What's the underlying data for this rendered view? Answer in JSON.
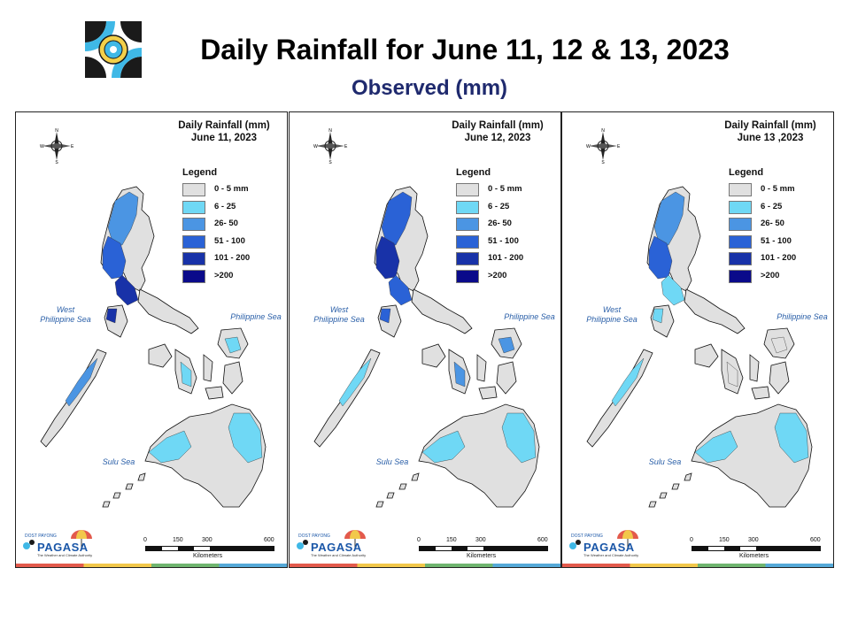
{
  "header": {
    "title": "Daily Rainfall for June 11, 12 & 13, 2023",
    "subtitle": "Observed (mm)"
  },
  "legend": {
    "heading": "Legend",
    "classes": [
      {
        "label": "0 - 5 mm",
        "color": "#e0e0e0"
      },
      {
        "label": "6 - 25",
        "color": "#6fd8f5"
      },
      {
        "label": "26- 50",
        "color": "#4b95e3"
      },
      {
        "label": "51 - 100",
        "color": "#2a62d6"
      },
      {
        "label": "101 - 200",
        "color": "#1832a8"
      },
      {
        "label": ">200",
        "color": "#0a0a8a"
      }
    ]
  },
  "panels": [
    {
      "title_line1": "Daily Rainfall (mm)",
      "title_line2": "June 11, 2023",
      "rain_colors": {
        "north": "#4b95e3",
        "northwest": "#2a62d6",
        "manila": "#1832a8",
        "visayas": "#6fd8f5",
        "mindanao": "#6fd8f5",
        "palawan": "#4b95e3"
      }
    },
    {
      "title_line1": "Daily Rainfall (mm)",
      "title_line2": "June 12, 2023",
      "rain_colors": {
        "north": "#2a62d6",
        "northwest": "#1832a8",
        "manila": "#2a62d6",
        "visayas": "#4b95e3",
        "mindanao": "#6fd8f5",
        "palawan": "#6fd8f5"
      }
    },
    {
      "title_line1": "Daily Rainfall (mm)",
      "title_line2": "June 13 ,2023",
      "rain_colors": {
        "north": "#4b95e3",
        "northwest": "#2a62d6",
        "manila": "#6fd8f5",
        "visayas": "#e0e0e0",
        "mindanao": "#6fd8f5",
        "palawan": "#6fd8f5"
      }
    }
  ],
  "seas": {
    "west": "West\nPhilippine Sea",
    "east": "Philippine Sea",
    "sulu": "Sulu Sea"
  },
  "compass": {
    "n": "N",
    "s": "S",
    "e": "E",
    "w": "W"
  },
  "scale": {
    "ticks": [
      "0",
      "150",
      "300",
      "600"
    ],
    "unit": "Kilometers"
  },
  "brand": {
    "name": "PAGASA",
    "small": "DOST PAYONG",
    "tagline": "The Weather and Climate Authority"
  },
  "colors": {
    "land": "#e0e0e0",
    "title_blue": "#1f2a6e",
    "sea_label": "#2a5fa8"
  }
}
